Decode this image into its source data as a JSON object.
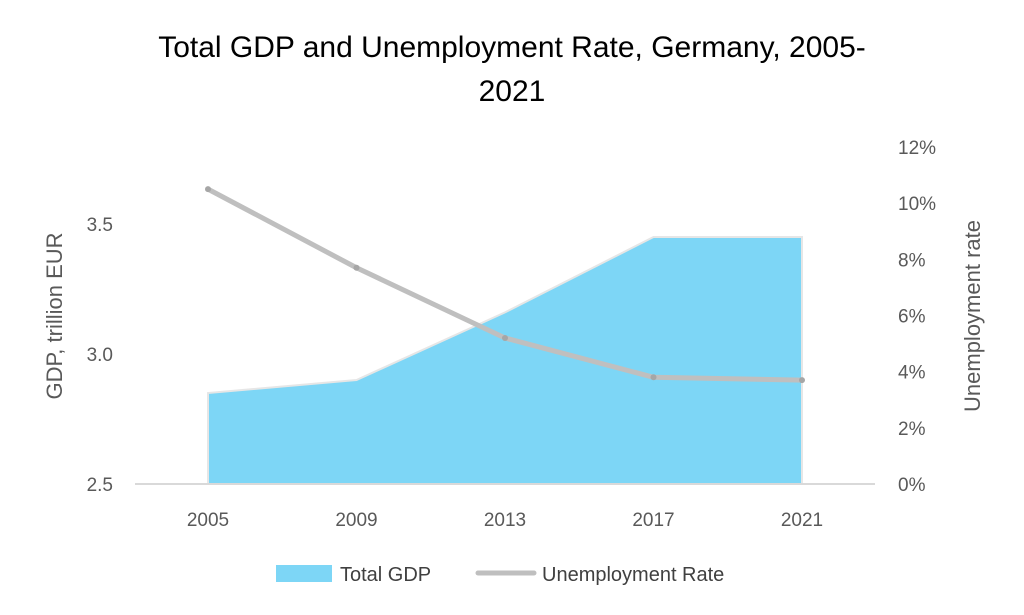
{
  "chart_data": {
    "type": "area",
    "title_lines": [
      "Total GDP and Unemployment Rate, Germany, 2005-",
      "2021"
    ],
    "categories": [
      "2005",
      "2009",
      "2013",
      "2017",
      "2021"
    ],
    "series": [
      {
        "name": "Total GDP",
        "type": "area",
        "axis": "left",
        "color": "#7DD6F6",
        "values": [
          2.85,
          2.9,
          3.16,
          3.45,
          3.45
        ]
      },
      {
        "name": "Unemployment Rate",
        "type": "line",
        "axis": "right",
        "color": "#BFBFBF",
        "values": [
          0.105,
          0.077,
          0.052,
          0.038,
          0.037
        ]
      }
    ],
    "left_axis": {
      "label": "GDP, trillion EUR",
      "ylim": [
        2.5,
        3.7
      ],
      "ticks": [
        2.5,
        3.0,
        3.5
      ],
      "tick_labels": [
        "2.5",
        "3.0",
        "3.5"
      ]
    },
    "right_axis": {
      "label": "Unemployment rate",
      "ylim": [
        0,
        0.12
      ],
      "ticks": [
        0,
        0.02,
        0.04,
        0.06,
        0.08,
        0.1,
        0.12
      ],
      "tick_labels": [
        "0%",
        "2%",
        "4%",
        "6%",
        "8%",
        "10%",
        "12%"
      ]
    },
    "grid": false,
    "legend_position": "bottom"
  }
}
